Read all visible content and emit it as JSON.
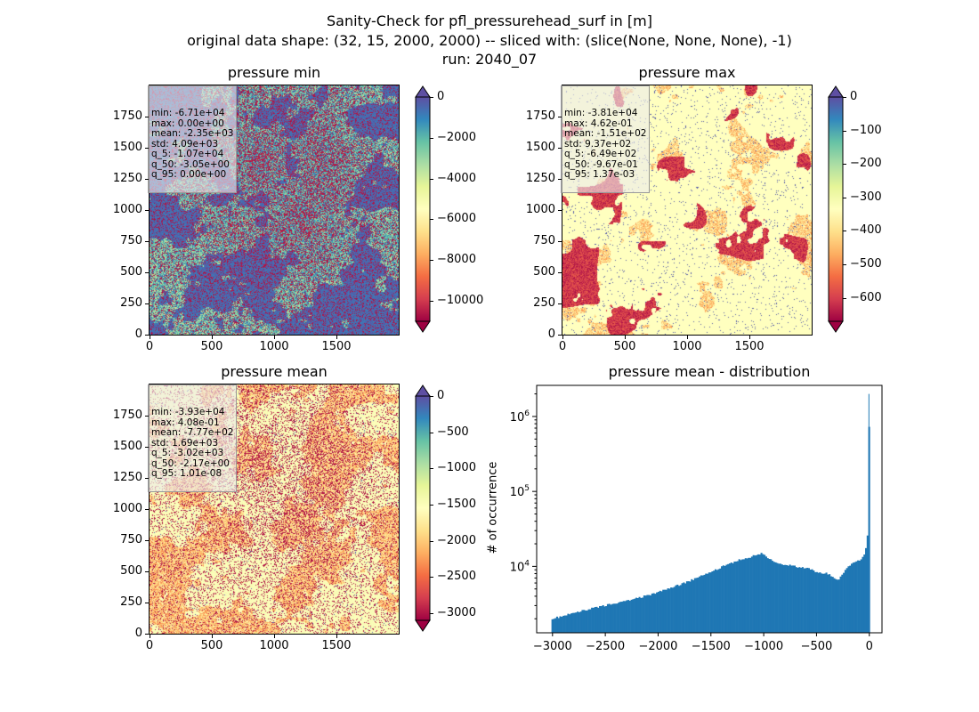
{
  "figure": {
    "title_line1": "Sanity-Check for pfl_pressurehead_surf in [m]",
    "title_line2": "original data shape: (32, 15, 2000, 2000) -- sliced with: (slice(None, None, None), -1)",
    "title_line3": "run: 2040_07"
  },
  "panels": {
    "min": {
      "title": "pressure min",
      "stats": [
        "min: -6.71e+04",
        "max: 0.00e+00",
        "mean: -2.35e+03",
        "std: 4.09e+03",
        "q_5: -1.07e+04",
        "q_50: -3.05e+00",
        "q_95: 0.00e+00"
      ],
      "colorbar": {
        "colormap": "Spectral",
        "vmin": -11000,
        "vmax": 0,
        "ticks": [
          0,
          -2000,
          -4000,
          -6000,
          -8000,
          -10000
        ],
        "tick_labels": [
          "0",
          "−2000",
          "−4000",
          "−6000",
          "−8000",
          "−10000"
        ]
      }
    },
    "max": {
      "title": "pressure max",
      "stats": [
        "min: -3.81e+04",
        "max: 4.62e-01",
        "mean: -1.51e+02",
        "std: 9.37e+02",
        "q_5: -6.49e+02",
        "q_50: -9.67e-01",
        "q_95: 1.37e-03"
      ],
      "colorbar": {
        "colormap": "Spectral",
        "vmin": -670,
        "vmax": 0,
        "ticks": [
          0,
          -100,
          -200,
          -300,
          -400,
          -500,
          -600
        ],
        "tick_labels": [
          "0",
          "−100",
          "−200",
          "−300",
          "−400",
          "−500",
          "−600"
        ]
      }
    },
    "mean": {
      "title": "pressure mean",
      "stats": [
        "min: -3.93e+04",
        "max: 4.08e-01",
        "mean: -7.77e+02",
        "std: 1.69e+03",
        "q_5: -3.02e+03",
        "q_50: -2.17e+00",
        "q_95: 1.01e-08"
      ],
      "colorbar": {
        "colormap": "Spectral",
        "vmin": -3100,
        "vmax": 0,
        "ticks": [
          0,
          -500,
          -1000,
          -1500,
          -2000,
          -2500,
          -3000
        ],
        "tick_labels": [
          "0",
          "−500",
          "−1000",
          "−1500",
          "−2000",
          "−2500",
          "−3000"
        ]
      }
    },
    "hist": {
      "title": "pressure mean - distribution",
      "ylabel": "# of occurrence"
    }
  },
  "map_axes": {
    "x_ticks": [
      0,
      500,
      1000,
      1500
    ],
    "x_tick_labels": [
      "0",
      "500",
      "1000",
      "1500"
    ],
    "y_ticks": [
      0,
      250,
      500,
      750,
      1000,
      1250,
      1500,
      1750
    ],
    "y_tick_labels": [
      "0",
      "250",
      "500",
      "750",
      "1000",
      "1250",
      "1500",
      "1750"
    ],
    "xlim": [
      0,
      2000
    ],
    "ylim": [
      0,
      2000
    ]
  },
  "chart_data": [
    {
      "type": "heatmap",
      "title": "pressure min",
      "colormap": "Spectral",
      "clim": [
        -11000,
        0
      ],
      "xlim": [
        0,
        2000
      ],
      "ylim": [
        0,
        2000
      ]
    },
    {
      "type": "heatmap",
      "title": "pressure max",
      "colormap": "Spectral",
      "clim": [
        -670,
        0
      ],
      "xlim": [
        0,
        2000
      ],
      "ylim": [
        0,
        2000
      ]
    },
    {
      "type": "heatmap",
      "title": "pressure mean",
      "colormap": "Spectral",
      "clim": [
        -3100,
        0
      ],
      "xlim": [
        0,
        2000
      ],
      "ylim": [
        0,
        2000
      ]
    },
    {
      "type": "bar",
      "title": "pressure mean - distribution",
      "ylabel": "# of occurrence",
      "yscale": "log",
      "bar_color": "#1f77b4",
      "xlim": [
        -3150,
        120
      ],
      "ylim": [
        1300,
        2600000
      ],
      "x_ticks": [
        -3000,
        -2500,
        -2000,
        -1500,
        -1000,
        -500,
        0
      ],
      "x_tick_labels": [
        "−3000",
        "−2500",
        "−2000",
        "−1500",
        "−1000",
        "−500",
        "0"
      ],
      "y_ticks": [
        10000,
        100000,
        1000000
      ],
      "y_tick_labels": [
        "10^4",
        "10^5",
        "10^6"
      ],
      "x": [
        -3000,
        -2750,
        -2500,
        -2250,
        -2000,
        -1750,
        -1500,
        -1250,
        -1150,
        -1050,
        -1000,
        -950,
        -900,
        -800,
        -700,
        -600,
        -500,
        -400,
        -300,
        -200,
        -100,
        -50,
        -25,
        -10,
        0
      ],
      "values": [
        2000,
        2500,
        3000,
        3600,
        4500,
        6000,
        8500,
        12000,
        13000,
        14500,
        15000,
        12500,
        11500,
        10500,
        10000,
        9500,
        8500,
        8000,
        6500,
        10000,
        12000,
        13500,
        20000,
        33000,
        2000000
      ]
    }
  ]
}
